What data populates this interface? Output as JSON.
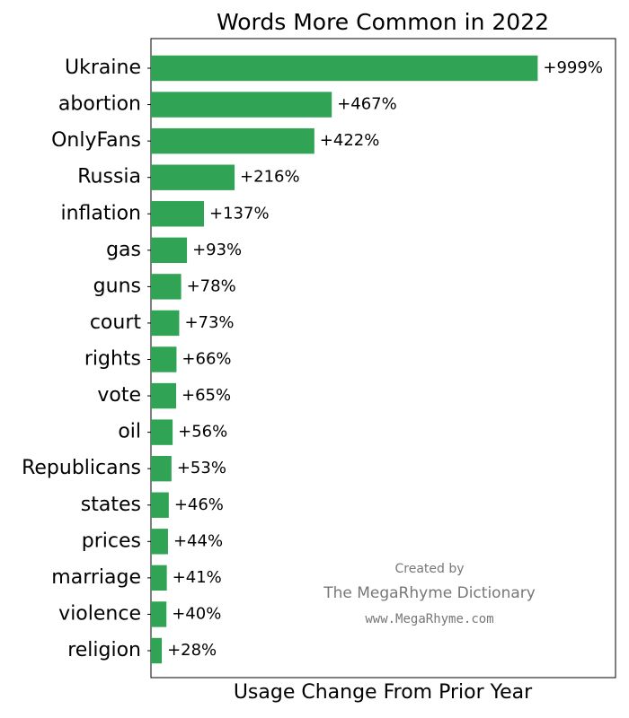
{
  "chart_data": {
    "type": "bar",
    "orientation": "horizontal",
    "title": "Words More Common in 2022",
    "x_label": "Usage Change From Prior Year",
    "categories": [
      "Ukraine",
      "abortion",
      "OnlyFans",
      "Russia",
      "inflation",
      "gas",
      "guns",
      "court",
      "rights",
      "vote",
      "oil",
      "Republicans",
      "states",
      "prices",
      "marriage",
      "violence",
      "religion"
    ],
    "values": [
      999,
      467,
      422,
      216,
      137,
      93,
      78,
      73,
      66,
      65,
      56,
      53,
      46,
      44,
      41,
      40,
      28
    ],
    "value_labels": [
      "+999%",
      "+467%",
      "+422%",
      "+216%",
      "+137%",
      "+93%",
      "+78%",
      "+73%",
      "+66%",
      "+65%",
      "+56%",
      "+53%",
      "+46%",
      "+44%",
      "+41%",
      "+40%",
      "+28%"
    ],
    "color": "#31a354",
    "xlim": [
      0,
      1200
    ],
    "annotations": [
      "Created by",
      "The MegaRhyme Dictionary",
      "www.MegaRhyme.com"
    ]
  }
}
